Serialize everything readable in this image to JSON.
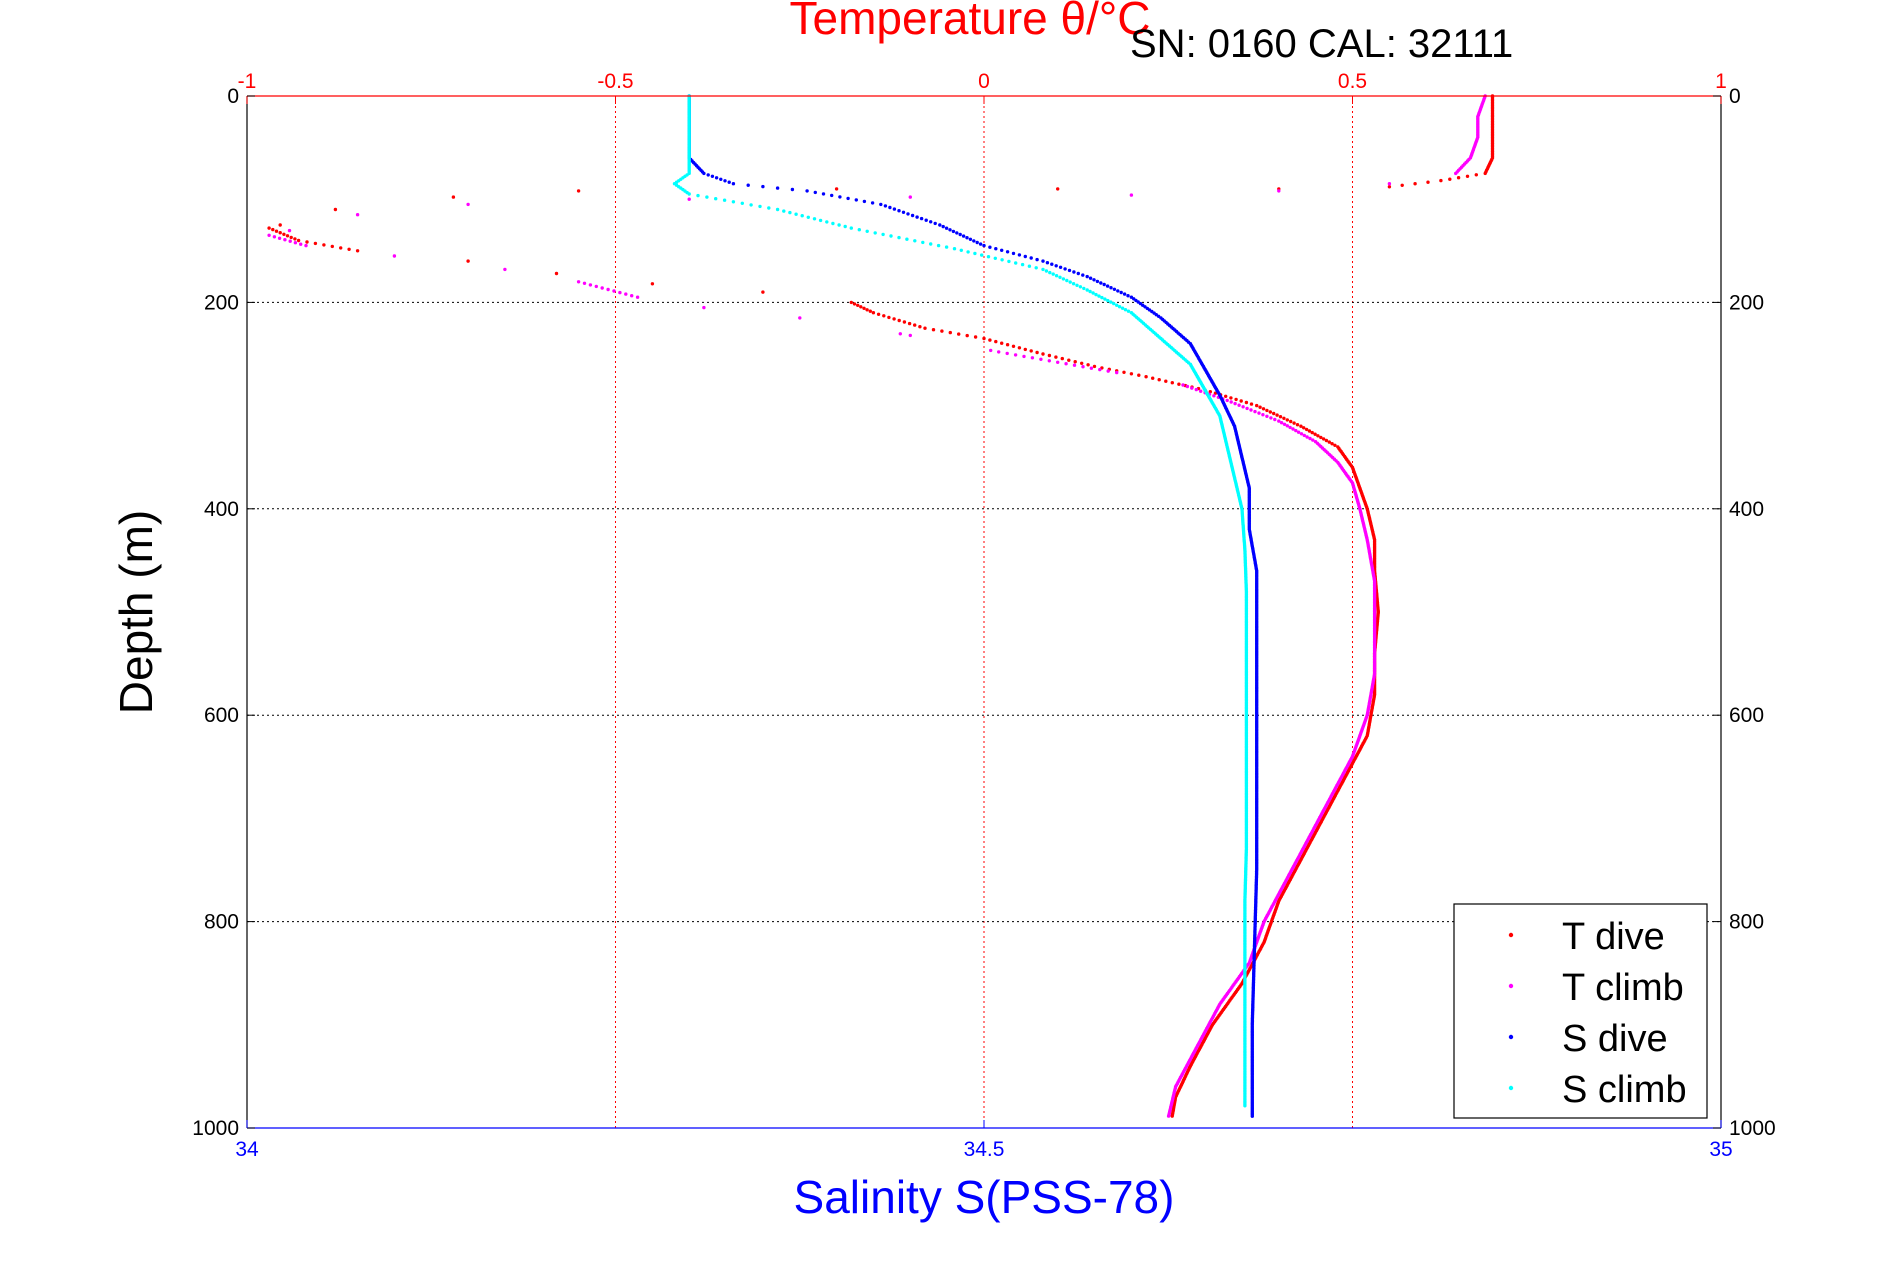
{
  "chart_data": {
    "type": "scatter",
    "title": "Temperature θ/°C",
    "annotation": "SN: 0160  CAL: 32111",
    "ylabel": "Depth (m)",
    "xlabel": "Salinity S(PSS-78)",
    "ylim": [
      1000,
      0
    ],
    "temperature_axis": {
      "range": [
        -1,
        1
      ],
      "ticks": [
        "-1",
        "-0.5",
        "0",
        "0.5",
        "1"
      ],
      "color": "#ff0000"
    },
    "salinity_axis": {
      "range": [
        34,
        35
      ],
      "ticks": [
        "34",
        "34.5",
        "35"
      ],
      "color": "#0000ff"
    },
    "depth_ticks": [
      "0",
      "200",
      "400",
      "600",
      "800",
      "1000"
    ],
    "grid": true,
    "legend": {
      "placement": "bottom-right",
      "entries": [
        "T dive",
        "T climb",
        "S dive",
        "S climb"
      ]
    },
    "series": [
      {
        "name": "T dive",
        "axis": "temperature",
        "color": "#ff0000",
        "points": [
          [
            0.69,
            0
          ],
          [
            0.69,
            20
          ],
          [
            0.69,
            40
          ],
          [
            0.69,
            60
          ],
          [
            0.68,
            75
          ],
          [
            0.62,
            82
          ],
          [
            0.55,
            88
          ],
          [
            0.4,
            90
          ],
          [
            0.1,
            90
          ],
          [
            -0.2,
            90
          ],
          [
            -0.55,
            92
          ],
          [
            -0.72,
            98
          ],
          [
            -0.88,
            110
          ],
          [
            -0.97,
            128
          ],
          [
            -0.93,
            140
          ],
          [
            -0.85,
            150
          ],
          [
            -0.7,
            160
          ],
          [
            -0.58,
            172
          ],
          [
            -0.45,
            182
          ],
          [
            -0.3,
            190
          ],
          [
            -0.18,
            200
          ],
          [
            -0.15,
            210
          ],
          [
            -0.08,
            225
          ],
          [
            0.0,
            235
          ],
          [
            0.08,
            250
          ],
          [
            0.15,
            262
          ],
          [
            0.22,
            272
          ],
          [
            0.3,
            285
          ],
          [
            0.37,
            300
          ],
          [
            0.43,
            320
          ],
          [
            0.48,
            340
          ],
          [
            0.5,
            360
          ],
          [
            0.51,
            380
          ],
          [
            0.52,
            400
          ],
          [
            0.53,
            430
          ],
          [
            0.53,
            460
          ],
          [
            0.535,
            500
          ],
          [
            0.53,
            540
          ],
          [
            0.53,
            580
          ],
          [
            0.52,
            620
          ],
          [
            0.49,
            660
          ],
          [
            0.46,
            700
          ],
          [
            0.43,
            740
          ],
          [
            0.4,
            780
          ],
          [
            0.38,
            820
          ],
          [
            0.35,
            860
          ],
          [
            0.31,
            900
          ],
          [
            0.28,
            940
          ],
          [
            0.26,
            970
          ],
          [
            0.255,
            990
          ]
        ]
      },
      {
        "name": "T climb",
        "axis": "temperature",
        "color": "#ff00ff",
        "points": [
          [
            0.68,
            0
          ],
          [
            0.67,
            20
          ],
          [
            0.67,
            40
          ],
          [
            0.66,
            60
          ],
          [
            0.64,
            75
          ],
          [
            0.55,
            85
          ],
          [
            0.4,
            92
          ],
          [
            0.2,
            96
          ],
          [
            -0.1,
            98
          ],
          [
            -0.4,
            100
          ],
          [
            -0.7,
            105
          ],
          [
            -0.85,
            115
          ],
          [
            -0.97,
            135
          ],
          [
            -0.92,
            145
          ],
          [
            -0.8,
            155
          ],
          [
            -0.65,
            168
          ],
          [
            -0.55,
            180
          ],
          [
            -0.47,
            195
          ],
          [
            -0.38,
            205
          ],
          [
            -0.25,
            215
          ],
          [
            -0.1,
            232
          ],
          [
            0.02,
            248
          ],
          [
            0.1,
            258
          ],
          [
            0.18,
            268
          ],
          [
            0.27,
            280
          ],
          [
            0.33,
            295
          ],
          [
            0.4,
            315
          ],
          [
            0.45,
            335
          ],
          [
            0.48,
            355
          ],
          [
            0.5,
            375
          ],
          [
            0.51,
            400
          ],
          [
            0.52,
            430
          ],
          [
            0.53,
            470
          ],
          [
            0.53,
            510
          ],
          [
            0.53,
            560
          ],
          [
            0.52,
            600
          ],
          [
            0.5,
            640
          ],
          [
            0.47,
            680
          ],
          [
            0.44,
            720
          ],
          [
            0.41,
            760
          ],
          [
            0.38,
            800
          ],
          [
            0.36,
            840
          ],
          [
            0.32,
            880
          ],
          [
            0.29,
            920
          ],
          [
            0.26,
            960
          ],
          [
            0.25,
            990
          ]
        ]
      },
      {
        "name": "S dive",
        "axis": "salinity",
        "color": "#0000ff",
        "points": [
          [
            34.3,
            0
          ],
          [
            34.3,
            20
          ],
          [
            34.3,
            40
          ],
          [
            34.3,
            60
          ],
          [
            34.31,
            75
          ],
          [
            34.33,
            85
          ],
          [
            34.38,
            92
          ],
          [
            34.43,
            105
          ],
          [
            34.47,
            125
          ],
          [
            34.5,
            145
          ],
          [
            34.54,
            160
          ],
          [
            34.57,
            175
          ],
          [
            34.6,
            195
          ],
          [
            34.62,
            215
          ],
          [
            34.64,
            240
          ],
          [
            34.65,
            265
          ],
          [
            34.66,
            290
          ],
          [
            34.67,
            320
          ],
          [
            34.675,
            350
          ],
          [
            34.68,
            380
          ],
          [
            34.68,
            420
          ],
          [
            34.685,
            460
          ],
          [
            34.685,
            500
          ],
          [
            34.685,
            550
          ],
          [
            34.685,
            600
          ],
          [
            34.685,
            650
          ],
          [
            34.685,
            700
          ],
          [
            34.685,
            750
          ],
          [
            34.684,
            800
          ],
          [
            34.683,
            850
          ],
          [
            34.682,
            900
          ],
          [
            34.682,
            950
          ],
          [
            34.682,
            990
          ]
        ]
      },
      {
        "name": "S climb",
        "axis": "salinity",
        "color": "#00ffff",
        "points": [
          [
            34.3,
            0
          ],
          [
            34.3,
            20
          ],
          [
            34.3,
            40
          ],
          [
            34.3,
            60
          ],
          [
            34.3,
            75
          ],
          [
            34.29,
            85
          ],
          [
            34.3,
            95
          ],
          [
            34.36,
            110
          ],
          [
            34.41,
            128
          ],
          [
            34.48,
            148
          ],
          [
            34.54,
            168
          ],
          [
            34.57,
            188
          ],
          [
            34.6,
            210
          ],
          [
            34.62,
            235
          ],
          [
            34.64,
            260
          ],
          [
            34.65,
            285
          ],
          [
            34.66,
            310
          ],
          [
            34.665,
            340
          ],
          [
            34.67,
            370
          ],
          [
            34.675,
            400
          ],
          [
            34.677,
            440
          ],
          [
            34.678,
            480
          ],
          [
            34.678,
            530
          ],
          [
            34.678,
            580
          ],
          [
            34.678,
            630
          ],
          [
            34.678,
            680
          ],
          [
            34.678,
            730
          ],
          [
            34.677,
            780
          ],
          [
            34.677,
            830
          ],
          [
            34.677,
            880
          ],
          [
            34.677,
            930
          ],
          [
            34.677,
            980
          ]
        ]
      }
    ]
  }
}
